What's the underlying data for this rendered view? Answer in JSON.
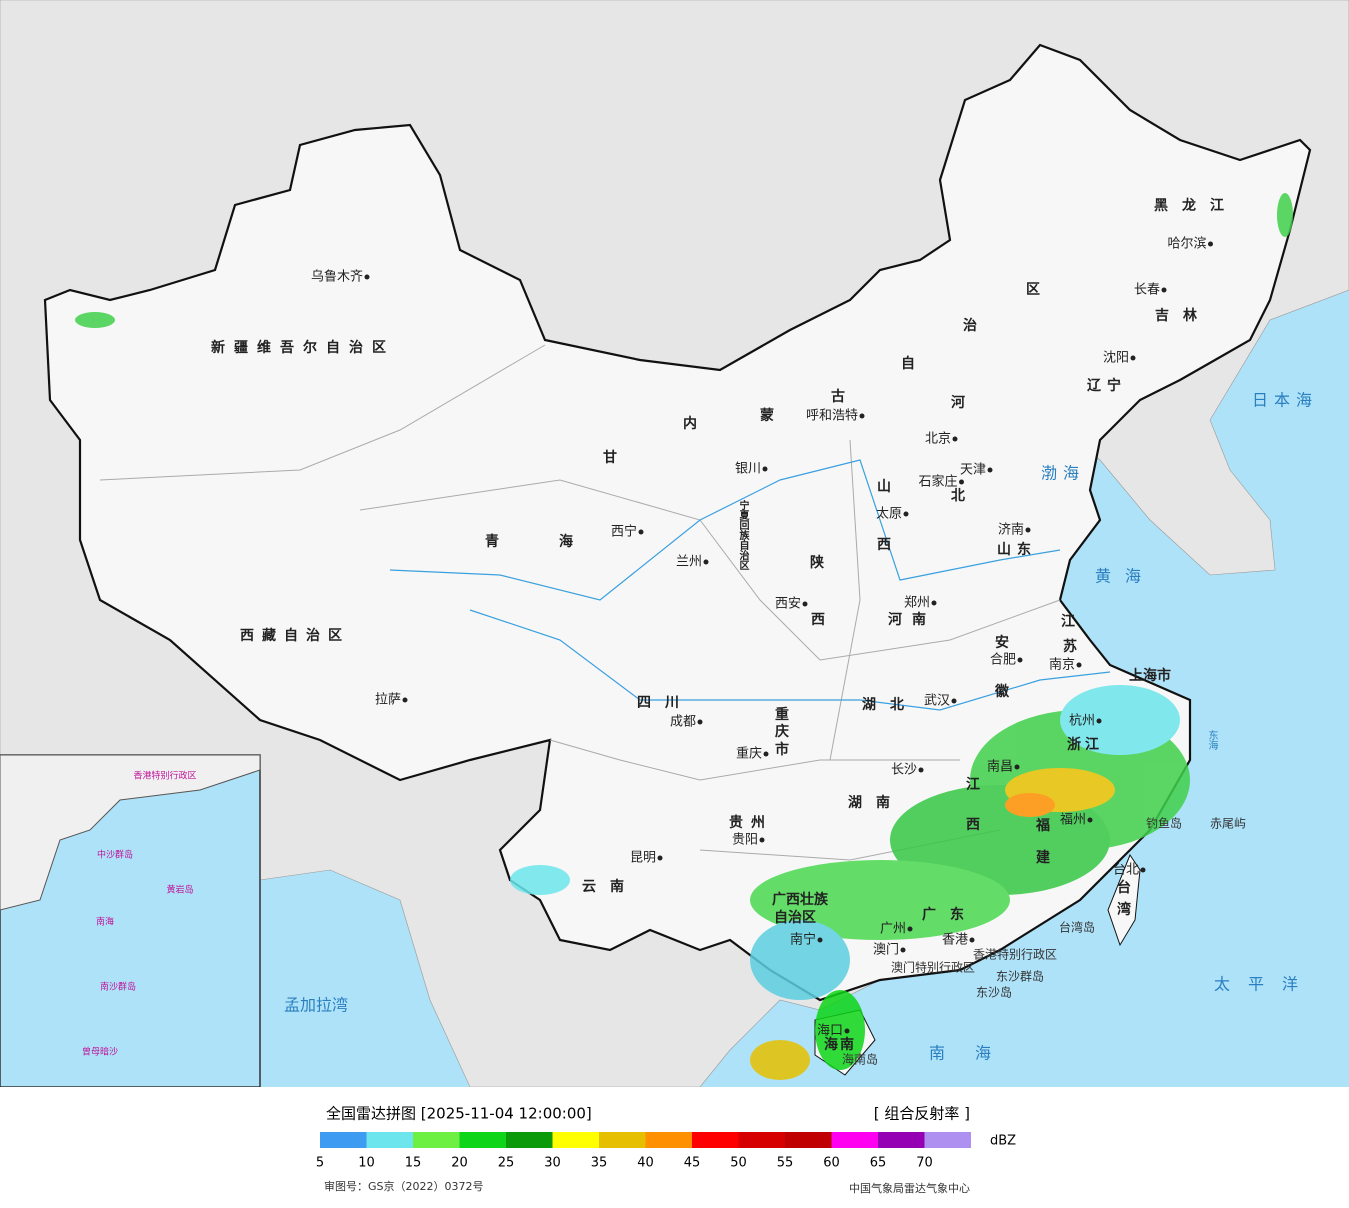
{
  "map": {
    "provinces": [
      "新疆维吾尔自治区",
      "西藏自治区",
      "青",
      "海",
      "甘",
      "内",
      "蒙",
      "古",
      "自",
      "治",
      "区",
      "黑龙江",
      "吉林",
      "辽宁",
      "河",
      "北",
      "山",
      "西",
      "山东",
      "陕",
      "西",
      "河南",
      "江",
      "苏",
      "安",
      "徽",
      "四川",
      "重",
      "庆",
      "市",
      "湖北",
      "湖南",
      "江",
      "西",
      "浙江",
      "福",
      "建",
      "贵州",
      "云南",
      "广西壮族",
      "自治区",
      "广东",
      "海南",
      "台",
      "湾",
      "上海市",
      "宁夏回族自治区"
    ],
    "cities": [
      "乌鲁木齐",
      "拉萨",
      "西宁",
      "兰州",
      "银川",
      "呼和浩特",
      "北京",
      "天津",
      "石家庄",
      "太原",
      "济南",
      "郑州",
      "西安",
      "成都",
      "重庆",
      "武汉",
      "合肥",
      "南京",
      "杭州",
      "长沙",
      "南昌",
      "福州",
      "贵阳",
      "昆明",
      "南宁",
      "广州",
      "香港",
      "澳门",
      "海口",
      "台北",
      "哈尔滨",
      "长春",
      "沈阳"
    ],
    "notes": [
      "香港特别行政区",
      "澳门特别行政区",
      "东沙群岛",
      "东沙岛",
      "海南岛",
      "台湾岛",
      "钓鱼岛",
      "赤尾屿"
    ],
    "seas": [
      "日本海",
      "渤海",
      "黄海",
      "东海",
      "太平洋",
      "南海",
      "孟加拉湾"
    ],
    "inset": [
      "南海",
      "中沙群岛",
      "黄岩岛",
      "南沙群岛",
      "曾母暗沙",
      "香港特别行政区"
    ]
  },
  "legend": {
    "title": "全国雷达拼图 [2025-11-04 12:00:00]",
    "product": "[ 组合反射率 ]",
    "unit": "dBZ",
    "ticks": [
      5,
      10,
      15,
      20,
      25,
      30,
      35,
      40,
      45,
      50,
      55,
      60,
      65,
      70
    ],
    "colors": [
      "#3d9cf2",
      "#6ce6ec",
      "#6ef043",
      "#0ed517",
      "#0a9a0a",
      "#ffff00",
      "#e6c000",
      "#ff9000",
      "#ff0000",
      "#d60000",
      "#c00000",
      "#ff00f0",
      "#9600b4",
      "#ad90f0"
    ]
  },
  "footer": {
    "approval": "审图号：GS京（2022）0372号",
    "source": "中国气象局雷达气象中心"
  }
}
